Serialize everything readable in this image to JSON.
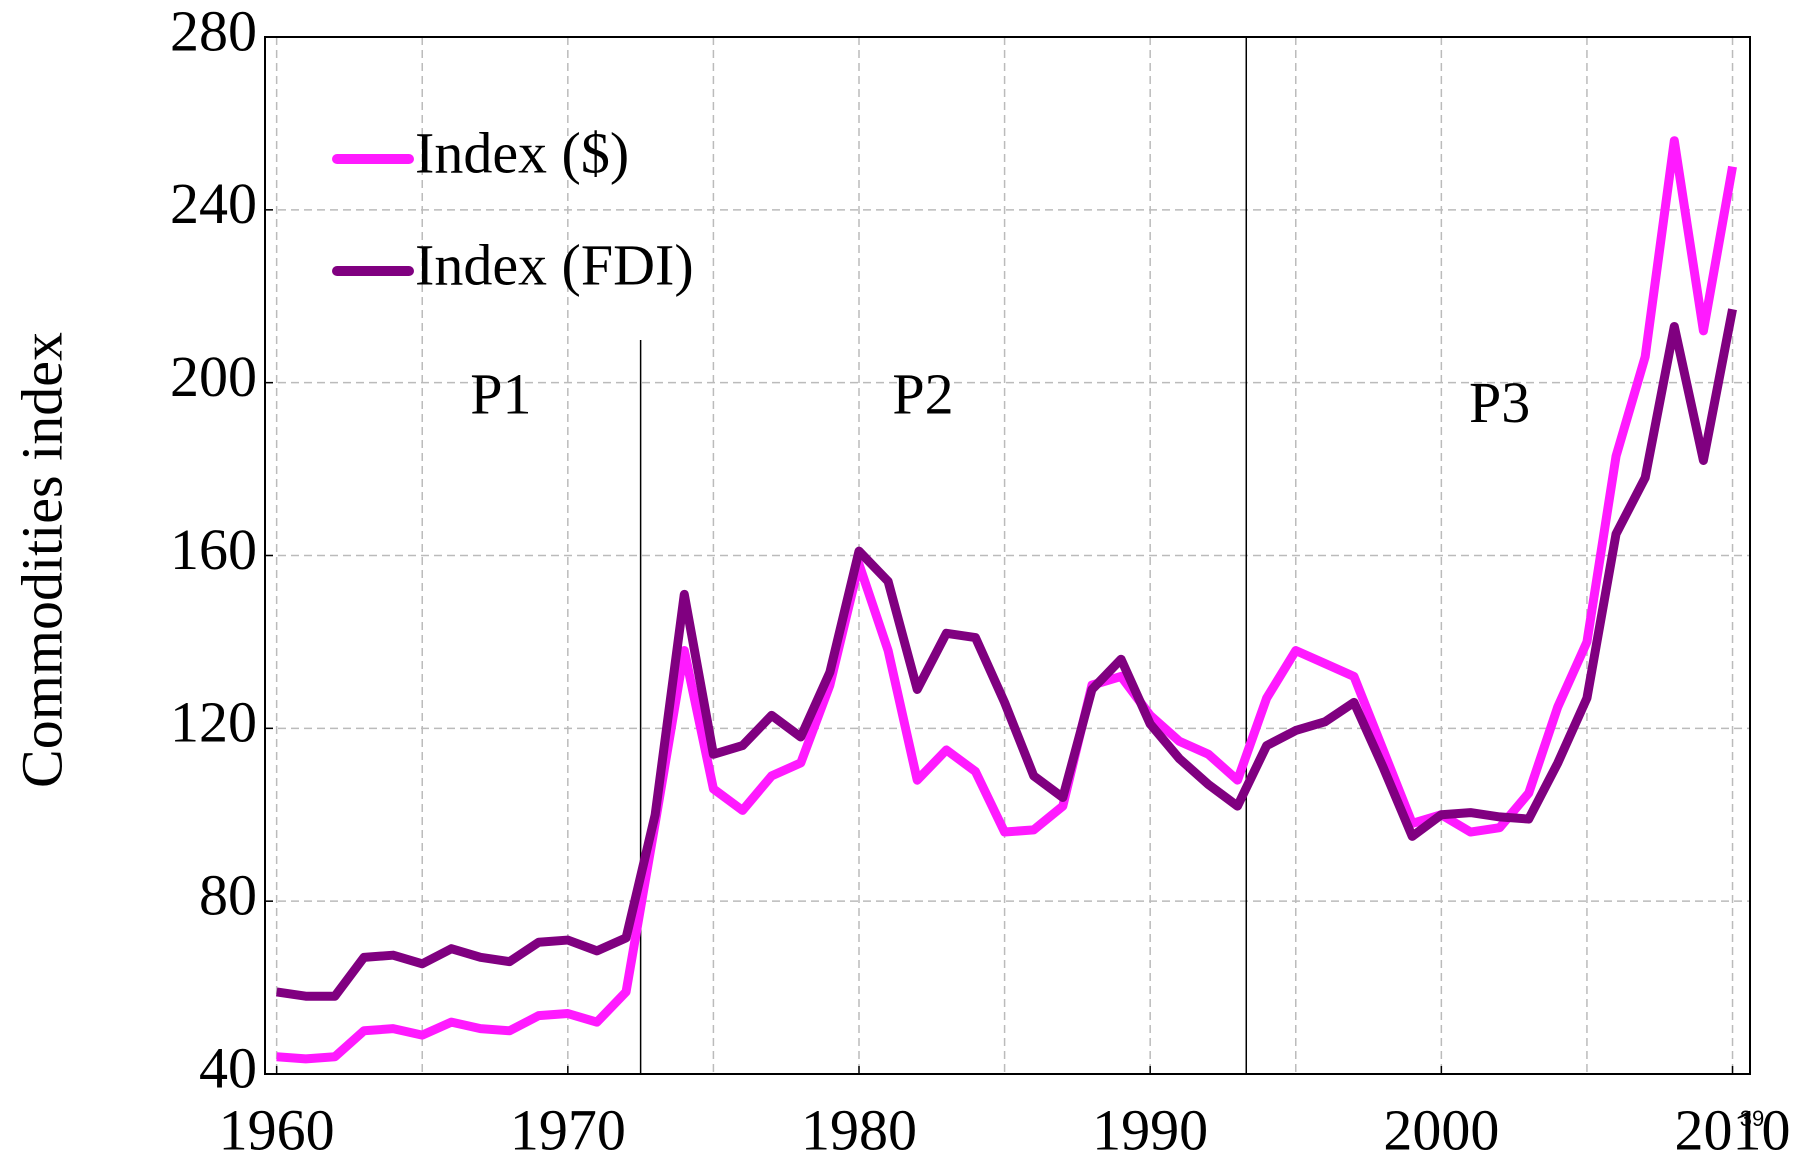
{
  "chart_data": {
    "type": "line",
    "y_label": "Commodities index",
    "x": [
      1960,
      1961,
      1962,
      1963,
      1964,
      1965,
      1966,
      1967,
      1968,
      1969,
      1970,
      1971,
      1972,
      1973,
      1974,
      1975,
      1976,
      1977,
      1978,
      1979,
      1980,
      1981,
      1982,
      1983,
      1984,
      1985,
      1986,
      1987,
      1988,
      1989,
      1990,
      1991,
      1992,
      1993,
      1994,
      1995,
      1996,
      1997,
      1998,
      1999,
      2000,
      2001,
      2002,
      2003,
      2004,
      2005,
      2006,
      2007,
      2008,
      2009,
      2010
    ],
    "series": [
      {
        "name": "Index ($)",
        "color": "#ff1aff",
        "values": [
          44,
          43.5,
          44,
          50,
          50.5,
          49,
          52,
          50.5,
          50,
          53.5,
          54,
          52,
          59,
          98,
          138,
          106,
          101,
          109,
          112,
          130,
          158,
          138,
          108,
          115,
          110,
          96,
          96.5,
          102,
          130,
          132,
          123,
          117,
          114,
          108,
          127,
          138,
          135,
          132,
          115,
          98,
          100,
          96,
          97,
          105,
          125,
          140,
          183,
          206,
          256,
          212,
          250
        ]
      },
      {
        "name": "Index (FDI)",
        "color": "#800080",
        "values": [
          59,
          58,
          58,
          67,
          67.5,
          65.5,
          69,
          67,
          66,
          70.5,
          71,
          68.5,
          71.5,
          100,
          151,
          114,
          116,
          123,
          118,
          133,
          161,
          154,
          129,
          142,
          141,
          126,
          109,
          104,
          129,
          136,
          121,
          113,
          107,
          102,
          116,
          119.5,
          121.5,
          126,
          111,
          95,
          100,
          100.5,
          99.5,
          99,
          112,
          127,
          165,
          178,
          213,
          182,
          217
        ]
      }
    ],
    "xlim": [
      1959.6,
      2010.6
    ],
    "xticks": [
      1960,
      1970,
      1980,
      1990,
      2000,
      2010
    ],
    "xgrid": [
      1965,
      1975,
      1985,
      1995,
      2005
    ],
    "ylim": [
      40,
      280
    ],
    "yticks": [
      40,
      80,
      120,
      160,
      200,
      240,
      280
    ],
    "grid": true,
    "legend": "top-left",
    "period_lines": [
      1972.5,
      1993.3
    ],
    "periods": [
      {
        "label": "P1",
        "x": 1967.7,
        "y": 196
      },
      {
        "label": "P2",
        "x": 1982.2,
        "y": 196
      },
      {
        "label": "P3",
        "x": 2002,
        "y": 194
      }
    ],
    "page_number": "39"
  }
}
